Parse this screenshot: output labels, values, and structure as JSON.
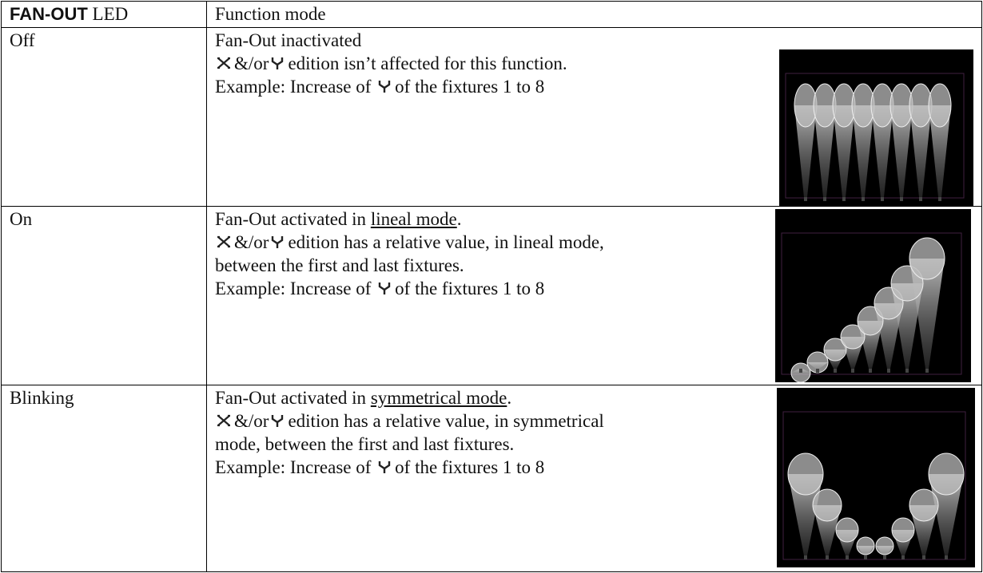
{
  "header": {
    "led_bold": "FAN-OUT",
    "led": "LED",
    "function": "Function mode"
  },
  "rows": [
    {
      "led": "Off",
      "lines": [
        [
          "Fan-Out inactivated"
        ],
        [
          "&/or",
          "edition isn’t affected for this function."
        ],
        [
          "Example: Increase of",
          "of the fixtures 1 to 8"
        ]
      ]
    },
    {
      "led": "On",
      "lines": [
        [
          "Fan-Out activated in",
          "lineal mode",
          "."
        ],
        [
          "&/or",
          "edition has a relative value, in lineal mode,"
        ],
        [
          "between the first and last fixtures."
        ],
        [
          "Example: Increase of",
          "of the fixtures 1 to 8"
        ]
      ]
    },
    {
      "led": "Blinking",
      "lines": [
        [
          "Fan-Out activated in",
          "symmetrical mode",
          "."
        ],
        [
          "&/or",
          "edition has a relative value, in symmetrical"
        ],
        [
          "mode, between the first and last fixtures."
        ],
        [
          "Example: Increase of",
          "of the fixtures 1 to 8"
        ]
      ]
    }
  ]
}
